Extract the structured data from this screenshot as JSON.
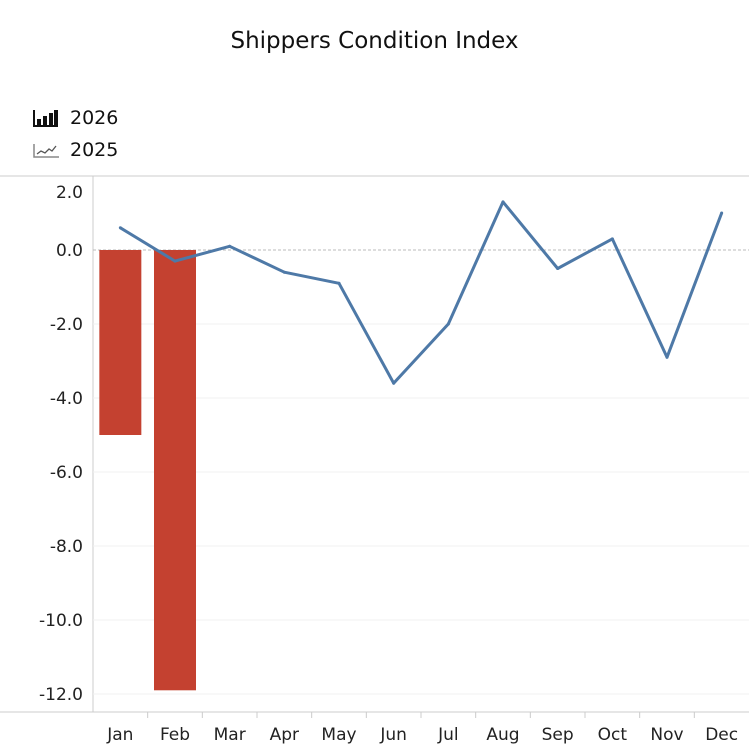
{
  "chart_data": {
    "type": "bar+line",
    "title": "Shippers Condition Index",
    "xlabel": "",
    "ylabel": "",
    "categories": [
      "Jan",
      "Feb",
      "Mar",
      "Apr",
      "May",
      "Jun",
      "Jul",
      "Aug",
      "Sep",
      "Oct",
      "Nov",
      "Dec"
    ],
    "series": [
      {
        "name": "2026",
        "type": "bar",
        "color": "#c44130",
        "values": [
          -5.0,
          -11.9,
          null,
          null,
          null,
          null,
          null,
          null,
          null,
          null,
          null,
          null
        ]
      },
      {
        "name": "2025",
        "type": "line",
        "color": "#4e79a7",
        "values": [
          0.6,
          -0.3,
          0.1,
          -0.6,
          -0.9,
          -3.6,
          -2.0,
          1.3,
          -0.5,
          0.3,
          -2.9,
          1.0
        ]
      }
    ],
    "yticks": [
      "2.0",
      "0.0",
      "-2.0",
      "-4.0",
      "-6.0",
      "-8.0",
      "-10.0",
      "-12.0"
    ],
    "ylim": [
      -12.5,
      2.0
    ],
    "grid": true,
    "legend_placement": "top-left"
  }
}
